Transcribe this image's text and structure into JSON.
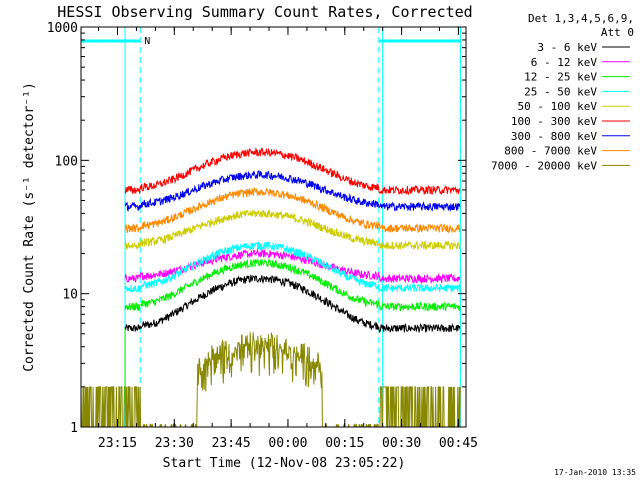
{
  "chart_data": {
    "type": "line",
    "title": "HESSI Observing Summary Count Rates, Corrected",
    "ylabel": "Corrected Count Rate (s⁻¹ detector⁻¹)",
    "xlabel": "Start Time (12-Nov-08 23:05:22)",
    "yscale": "log",
    "ylim": [
      1,
      1000
    ],
    "xlim": [
      "23:05:22",
      "00:47:00"
    ],
    "y_ticks": [
      {
        "value": 1,
        "label": "1"
      },
      {
        "value": 10,
        "label": "10"
      },
      {
        "value": 100,
        "label": "100"
      },
      {
        "value": 1000,
        "label": "1000"
      }
    ],
    "x_ticks": [
      "23:15",
      "23:30",
      "23:45",
      "00:00",
      "00:15",
      "00:30",
      "00:45"
    ],
    "legend": {
      "position": "right",
      "header": [
        "Det 1,3,4,5,6,9,",
        "Att 0"
      ]
    },
    "series": [
      {
        "name": "3 - 6 keV",
        "color": "#000000",
        "night_level": 5.5,
        "peak": 13
      },
      {
        "name": "6 - 12 keV",
        "color": "#ff00ff",
        "night_level": 13,
        "peak": 20
      },
      {
        "name": "12 - 25 keV",
        "color": "#00ee00",
        "night_level": 8,
        "peak": 17
      },
      {
        "name": "25 - 50 keV",
        "color": "#00ffff",
        "night_level": 11,
        "peak": 23
      },
      {
        "name": "50 - 100 keV",
        "color": "#cccc00",
        "night_level": 23,
        "peak": 40
      },
      {
        "name": "100 - 300 keV",
        "color": "#ff0000",
        "night_level": 60,
        "peak": 115
      },
      {
        "name": "300 - 800 keV",
        "color": "#0000ee",
        "night_level": 45,
        "peak": 78
      },
      {
        "name": "800 - 7000 keV",
        "color": "#ff8800",
        "night_level": 31,
        "peak": 58
      },
      {
        "name": "7000 - 20000 keV",
        "color": "#888800",
        "night_level": 1.5,
        "peak": 4
      }
    ],
    "markers": {
      "flag_label": "N",
      "flag_color": "#00ffff",
      "night_intervals": [
        [
          "23:05:22",
          "23:21:00"
        ],
        [
          "00:24:00",
          "00:45:30"
        ]
      ],
      "saa_intervals": [
        [
          "23:05:22",
          "23:17:00"
        ],
        [
          "00:25:00",
          "00:45:30"
        ]
      ]
    },
    "annotation": "17-Jan-2010 13:35"
  }
}
